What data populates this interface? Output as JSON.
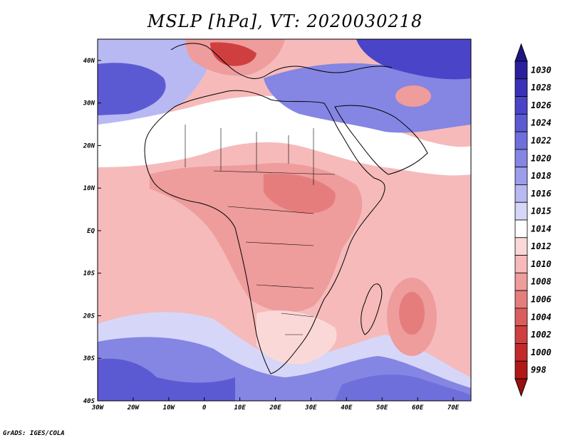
{
  "title": "MSLP [hPa], VT: 2020030218",
  "credit": "GrADS: IGES/COLA",
  "map": {
    "projection": "lat-lon",
    "lon_range": [
      -30,
      75
    ],
    "lat_range": [
      -40,
      45
    ],
    "lon_ticks": [
      "30W",
      "20W",
      "10W",
      "0",
      "10E",
      "20E",
      "30E",
      "40E",
      "50E",
      "60E",
      "70E"
    ],
    "lat_ticks": [
      "40S",
      "30S",
      "20S",
      "10S",
      "EQ",
      "10N",
      "20N",
      "30N",
      "40N"
    ],
    "region": "Africa, Arabian Peninsula, Mediterranean, South Atlantic and Indian Ocean"
  },
  "colorbar": {
    "levels": [
      "1030",
      "1028",
      "1026",
      "1024",
      "1022",
      "1020",
      "1018",
      "1016",
      "1015",
      "1014",
      "1012",
      "1010",
      "1008",
      "1006",
      "1004",
      "1002",
      "1000",
      "998"
    ],
    "colors": [
      "#2b1f9e",
      "#3a31b8",
      "#4a44c8",
      "#5c5ad3",
      "#6f6fdc",
      "#8585e3",
      "#9c9deb",
      "#b8b9f2",
      "#d6d7f8",
      "#ffffff",
      "#fbd8d8",
      "#f6baba",
      "#ee9c9c",
      "#e67d7d",
      "#dc5d5d",
      "#d03f3f",
      "#c22a2a",
      "#b01818"
    ],
    "top_arrow_color": "#1d1685",
    "bottom_arrow_color": "#9a1010"
  }
}
